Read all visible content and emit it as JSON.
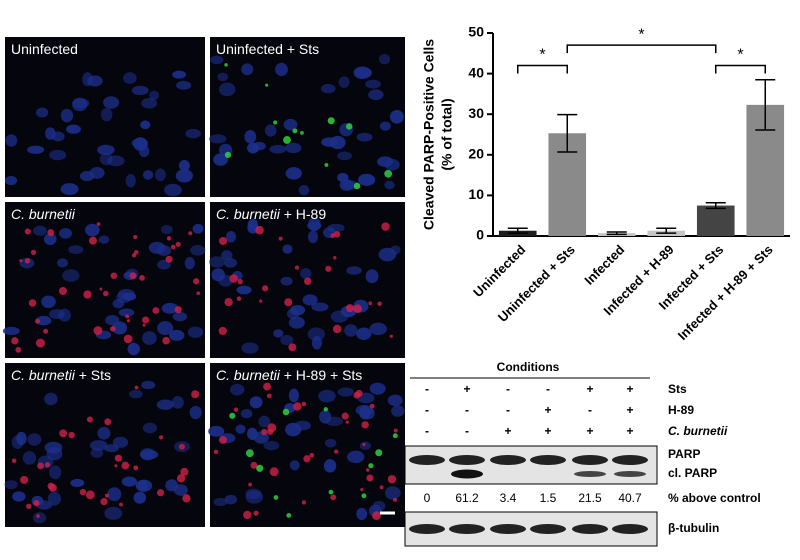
{
  "panels": [
    {
      "label": "Uninfected"
    },
    {
      "label": "Uninfected + Sts"
    },
    {
      "organism": "C. burnetii"
    },
    {
      "organism": "C. burnetii",
      "treatment": " + H-89"
    },
    {
      "organism": "C. burnetii",
      "treatment": " + Sts"
    },
    {
      "organism": "C. burnetii",
      "treatment": " + H-89 + Sts"
    }
  ],
  "chart_data": {
    "type": "bar",
    "ylabel": [
      "Cleaved PARP-Positive Cells",
      "(% of total)"
    ],
    "categories": [
      "Uninfected",
      "Uninfected + Sts",
      "Infected",
      "Infected + H-89",
      "Infected + Sts",
      "Infected + H-89 + Sts"
    ],
    "values": [
      1.3,
      25.3,
      0.7,
      1.3,
      7.5,
      32.3
    ],
    "errors": [
      0.6,
      4.6,
      0.3,
      0.6,
      0.7,
      6.2
    ],
    "colors": [
      "#1e1e1e",
      "#8a8a8a",
      "#c4c4c4",
      "#c4c4c4",
      "#444444",
      "#8a8a8a"
    ],
    "ylim": [
      0,
      50
    ],
    "yticks": [
      0,
      10,
      20,
      30,
      40,
      50
    ],
    "annotations": [
      {
        "label": "*",
        "from": 0,
        "to": 1,
        "y": 42
      },
      {
        "label": "*",
        "from": 1,
        "to": 4,
        "y": 47
      },
      {
        "label": "*",
        "from": 4,
        "to": 5,
        "y": 42
      }
    ]
  },
  "blot": {
    "header": "Conditions",
    "rows": [
      {
        "label": "Sts",
        "signs": [
          "-",
          "+",
          "-",
          "-",
          "+",
          "+"
        ]
      },
      {
        "label": "H-89",
        "signs": [
          "-",
          "-",
          "-",
          "+",
          "-",
          "+"
        ]
      },
      {
        "label": "C. burnetii",
        "signs": [
          "-",
          "-",
          "+",
          "+",
          "+",
          "+"
        ]
      }
    ],
    "band_labels": [
      "PARP",
      "cl. PARP"
    ],
    "quant": [
      0,
      61.2,
      3.4,
      1.5,
      21.5,
      40.7
    ],
    "quant_label": "% above control",
    "loading_label": "β-tubulin"
  }
}
